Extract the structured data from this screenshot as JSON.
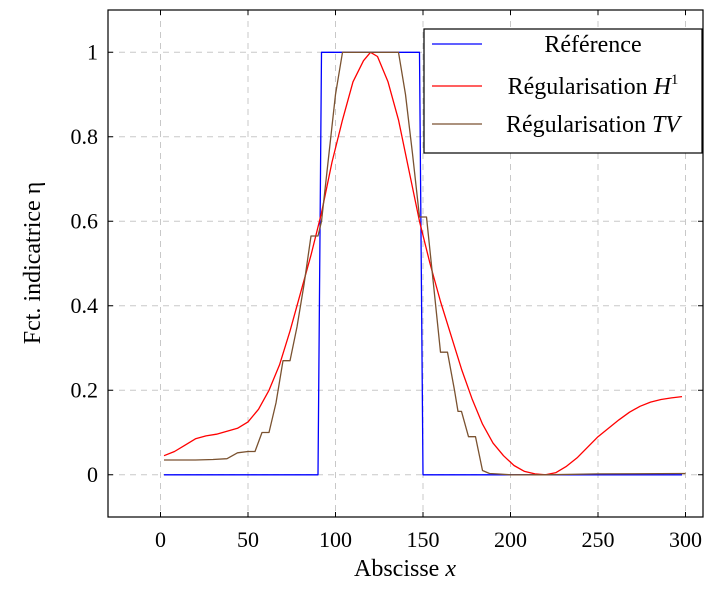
{
  "chart_data": {
    "type": "line",
    "xlabel": "Abscisse",
    "xlabel_var": "x",
    "ylabel": "Fct. indicatrice η",
    "xlim": [
      -30,
      310
    ],
    "ylim": [
      -0.1,
      1.1
    ],
    "xticks": [
      0,
      50,
      100,
      150,
      200,
      250,
      300
    ],
    "yticks": [
      0,
      0.2,
      0.4,
      0.6,
      0.8,
      1
    ],
    "ytick_labels": [
      "0",
      "0.2",
      "0.4",
      "0.6",
      "0.8",
      "1"
    ],
    "grid": true,
    "legend_position": "top-right",
    "series": [
      {
        "name": "Référence",
        "legend_base": "Référence",
        "legend_math": "",
        "legend_sup": "",
        "color": "#0000ff",
        "x": [
          2,
          90,
          92,
          148,
          150,
          298
        ],
        "y": [
          0,
          0,
          1,
          1,
          0,
          0
        ]
      },
      {
        "name": "Régularisation H1",
        "legend_base": "Régularisation",
        "legend_math": "H",
        "legend_sup": "1",
        "color": "#ff0000",
        "x": [
          2,
          8,
          14,
          20,
          26,
          32,
          38,
          44,
          50,
          56,
          62,
          68,
          74,
          80,
          86,
          92,
          98,
          104,
          110,
          116,
          120,
          124,
          130,
          136,
          142,
          148,
          154,
          160,
          166,
          172,
          178,
          184,
          190,
          196,
          202,
          208,
          214,
          220,
          226,
          232,
          238,
          244,
          250,
          256,
          262,
          268,
          274,
          280,
          286,
          292,
          298
        ],
        "y": [
          0.045,
          0.055,
          0.07,
          0.085,
          0.092,
          0.096,
          0.103,
          0.11,
          0.125,
          0.155,
          0.2,
          0.26,
          0.34,
          0.43,
          0.52,
          0.62,
          0.74,
          0.84,
          0.93,
          0.98,
          1.0,
          0.99,
          0.93,
          0.84,
          0.72,
          0.6,
          0.5,
          0.41,
          0.33,
          0.25,
          0.18,
          0.12,
          0.075,
          0.045,
          0.022,
          0.008,
          0.002,
          0.0,
          0.005,
          0.02,
          0.04,
          0.065,
          0.09,
          0.11,
          0.13,
          0.148,
          0.162,
          0.172,
          0.178,
          0.182,
          0.185
        ]
      },
      {
        "name": "Régularisation TV",
        "legend_base": "Régularisation",
        "legend_math": "TV",
        "legend_sup": "",
        "color": "#7a5230",
        "x": [
          2,
          10,
          20,
          30,
          38,
          44,
          50,
          54,
          58,
          62,
          66,
          70,
          74,
          78,
          82,
          86,
          88,
          90,
          92,
          96,
          100,
          104,
          108,
          136,
          140,
          144,
          148,
          150,
          152,
          156,
          160,
          164,
          168,
          170,
          172,
          176,
          180,
          184,
          188,
          192,
          200,
          220,
          250,
          300
        ],
        "y": [
          0.035,
          0.035,
          0.035,
          0.036,
          0.038,
          0.052,
          0.055,
          0.055,
          0.1,
          0.1,
          0.17,
          0.27,
          0.27,
          0.35,
          0.45,
          0.565,
          0.565,
          0.565,
          0.6,
          0.75,
          0.9,
          1.0,
          1.0,
          1.0,
          0.9,
          0.76,
          0.61,
          0.61,
          0.61,
          0.45,
          0.29,
          0.29,
          0.2,
          0.15,
          0.15,
          0.09,
          0.09,
          0.01,
          0.003,
          0.002,
          0.0,
          0.0,
          0.002,
          0.003
        ]
      }
    ]
  }
}
